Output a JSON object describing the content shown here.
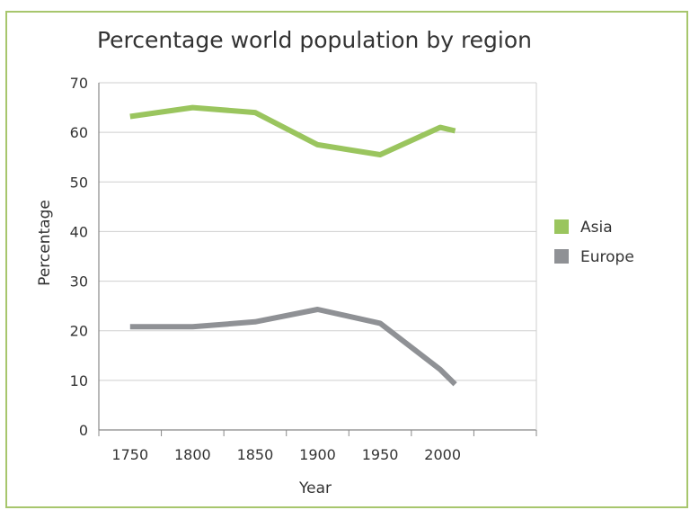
{
  "chart_data": {
    "type": "line",
    "title": "Percentage world population by region",
    "xlabel": "Year",
    "ylabel": "Percentage",
    "x": [
      1750,
      1800,
      1850,
      1900,
      1950,
      2000
    ],
    "x_tick_labels": [
      "1750",
      "1800",
      "1850",
      "1900",
      "1950",
      "2000"
    ],
    "ylim": [
      0,
      70
    ],
    "y_ticks": [
      0,
      10,
      20,
      30,
      40,
      50,
      60,
      70
    ],
    "grid": true,
    "legend_position": "right",
    "series": [
      {
        "name": "Asia",
        "color": "#9ac55e",
        "points": [
          [
            1750,
            63.2
          ],
          [
            1800,
            65.0
          ],
          [
            1850,
            64.0
          ],
          [
            1900,
            57.5
          ],
          [
            1950,
            55.5
          ],
          [
            1998,
            61.0
          ],
          [
            2010,
            60.3
          ]
        ]
      },
      {
        "name": "Europe",
        "color": "#8f9195",
        "points": [
          [
            1750,
            20.8
          ],
          [
            1800,
            20.8
          ],
          [
            1850,
            21.8
          ],
          [
            1900,
            24.3
          ],
          [
            1950,
            21.5
          ],
          [
            1998,
            12.2
          ],
          [
            2010,
            9.2
          ]
        ]
      }
    ]
  }
}
